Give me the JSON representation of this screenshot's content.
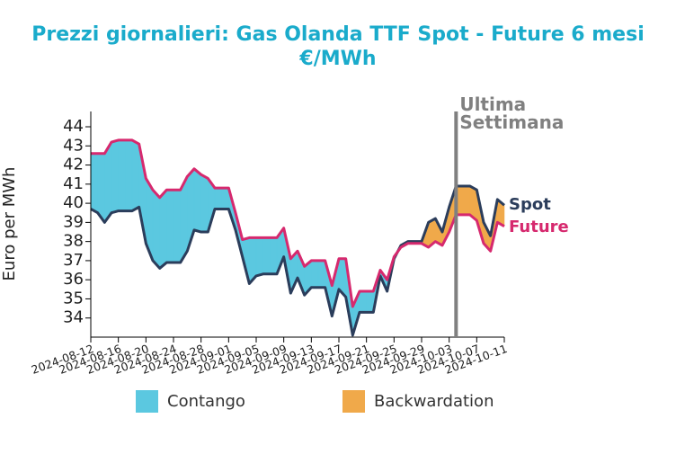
{
  "chart_data": {
    "type": "line",
    "title": "Prezzi giornalieri: Gas Olanda TTF Spot - Future 6 mesi",
    "subtitle": "€/MWh",
    "y_label": "Euro per MWh",
    "x": [
      "2024-08-12",
      "2024-08-13",
      "2024-08-14",
      "2024-08-15",
      "2024-08-16",
      "2024-08-17",
      "2024-08-18",
      "2024-08-19",
      "2024-08-20",
      "2024-08-21",
      "2024-08-22",
      "2024-08-23",
      "2024-08-24",
      "2024-08-25",
      "2024-08-26",
      "2024-08-27",
      "2024-08-28",
      "2024-08-29",
      "2024-08-30",
      "2024-08-31",
      "2024-09-01",
      "2024-09-02",
      "2024-09-03",
      "2024-09-04",
      "2024-09-05",
      "2024-09-06",
      "2024-09-07",
      "2024-09-08",
      "2024-09-09",
      "2024-09-10",
      "2024-09-11",
      "2024-09-12",
      "2024-09-13",
      "2024-09-14",
      "2024-09-15",
      "2024-09-16",
      "2024-09-17",
      "2024-09-18",
      "2024-09-19",
      "2024-09-20",
      "2024-09-21",
      "2024-09-22",
      "2024-09-23",
      "2024-09-24",
      "2024-09-25",
      "2024-09-26",
      "2024-09-27",
      "2024-09-28",
      "2024-09-29",
      "2024-09-30",
      "2024-10-01",
      "2024-10-02",
      "2024-10-03",
      "2024-10-04",
      "2024-10-05",
      "2024-10-06",
      "2024-10-07",
      "2024-10-08",
      "2024-10-09",
      "2024-10-10",
      "2024-10-11"
    ],
    "series": [
      {
        "name": "Spot",
        "color": "#2b3d5b",
        "values": [
          39.7,
          39.5,
          39.0,
          39.5,
          39.6,
          39.6,
          39.6,
          39.8,
          37.9,
          37.0,
          36.6,
          36.9,
          36.9,
          36.9,
          37.5,
          38.6,
          38.5,
          38.5,
          39.7,
          39.7,
          39.7,
          38.6,
          37.2,
          35.8,
          36.2,
          36.3,
          36.3,
          36.3,
          37.2,
          35.3,
          36.1,
          35.2,
          35.6,
          35.6,
          35.6,
          34.1,
          35.5,
          35.1,
          33.1,
          34.3,
          34.3,
          34.3,
          36.2,
          35.4,
          37.1,
          37.8,
          38.0,
          38.0,
          38.0,
          39.0,
          39.2,
          38.5,
          39.8,
          40.9,
          40.9,
          40.9,
          40.7,
          39.0,
          38.3,
          40.2,
          39.9
        ]
      },
      {
        "name": "Future",
        "color": "#d6296e",
        "values": [
          42.6,
          42.6,
          42.6,
          43.2,
          43.3,
          43.3,
          43.3,
          43.1,
          41.3,
          40.7,
          40.3,
          40.7,
          40.7,
          40.7,
          41.4,
          41.8,
          41.5,
          41.3,
          40.8,
          40.8,
          40.8,
          39.5,
          38.1,
          38.2,
          38.2,
          38.2,
          38.2,
          38.2,
          38.7,
          37.1,
          37.5,
          36.7,
          37.0,
          37.0,
          37.0,
          35.7,
          37.1,
          37.1,
          34.6,
          35.4,
          35.4,
          35.4,
          36.5,
          36.0,
          37.2,
          37.7,
          37.9,
          37.9,
          37.9,
          37.7,
          38.0,
          37.8,
          38.5,
          39.4,
          39.4,
          39.4,
          39.1,
          37.9,
          37.5,
          39.0,
          38.8
        ]
      }
    ],
    "fills": [
      {
        "name": "Contango",
        "color": "#5bc8e0"
      },
      {
        "name": "Backwardation",
        "color": "#f0a94a"
      }
    ],
    "xlim": [
      "2024-08-12",
      "2024-10-11"
    ],
    "xticks": [
      "2024-08-12",
      "2024-08-16",
      "2024-08-20",
      "2024-08-24",
      "2024-08-28",
      "2024-09-01",
      "2024-09-05",
      "2024-09-09",
      "2024-09-13",
      "2024-09-17",
      "2024-09-21",
      "2024-09-25",
      "2024-09-29",
      "2024-10-03",
      "2024-10-07",
      "2024-10-11"
    ],
    "ylim": [
      33,
      44.8
    ],
    "yticks": [
      34,
      35,
      36,
      37,
      38,
      39,
      40,
      41,
      42,
      43,
      44
    ],
    "annotation": {
      "x": "2024-10-04",
      "text": "Ultima Settimana",
      "color": "#808080"
    }
  }
}
